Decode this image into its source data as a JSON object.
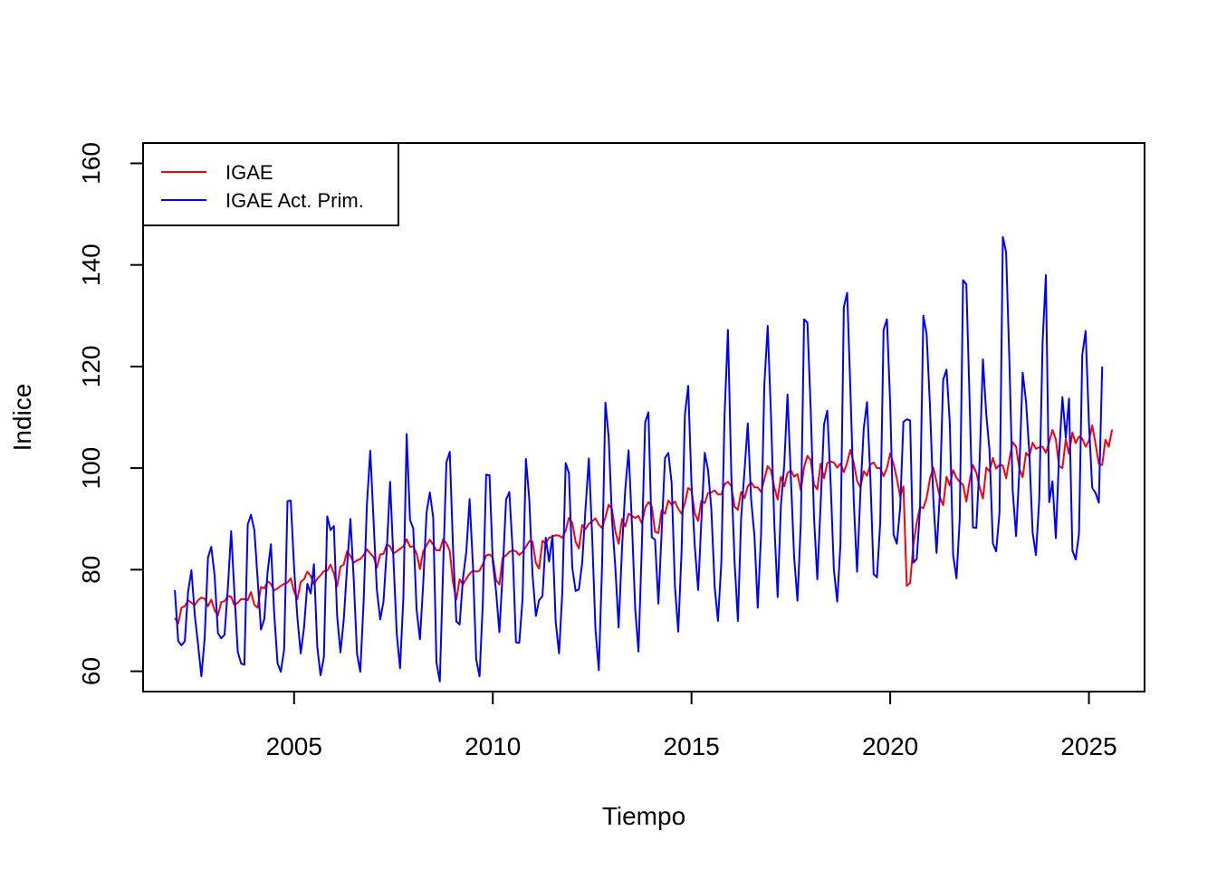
{
  "chart_data": {
    "type": "line",
    "title": "",
    "xlabel": "Tiempo",
    "ylabel": "Indice",
    "xlim": [
      2001.2,
      2026.4
    ],
    "ylim": [
      56,
      164
    ],
    "x_ticks": [
      2005,
      2010,
      2015,
      2020,
      2025
    ],
    "x_tick_labels": [
      "2005",
      "2010",
      "2015",
      "2020",
      "2025"
    ],
    "y_ticks": [
      60,
      80,
      100,
      120,
      140,
      160
    ],
    "y_tick_labels": [
      "60",
      "80",
      "100",
      "120",
      "140",
      "160"
    ],
    "grid": false,
    "legend_position": "top-left",
    "x_start": 2002.0,
    "x_step": 0.0833333,
    "series": [
      {
        "name": "IGAE",
        "color": "#ff0000",
        "values": [
          70.5,
          69.4,
          72.5,
          72.8,
          74.0,
          73.5,
          73.0,
          74.0,
          74.5,
          74.3,
          72.8,
          74.1,
          72.0,
          71.0,
          73.6,
          73.8,
          74.8,
          74.7,
          73.0,
          73.5,
          74.2,
          74.2,
          74.0,
          75.6,
          73.1,
          72.5,
          76.6,
          76.3,
          77.7,
          77.2,
          75.9,
          76.3,
          76.8,
          77.2,
          77.5,
          78.3,
          75.7,
          74.2,
          77.6,
          78.1,
          79.6,
          78.8,
          77.1,
          78.2,
          78.9,
          79.7,
          79.8,
          81.0,
          79.3,
          76.7,
          80.6,
          81.0,
          83.6,
          82.7,
          81.4,
          81.8,
          82.1,
          82.9,
          84.0,
          83.2,
          82.5,
          80.4,
          83.0,
          83.1,
          85.0,
          84.6,
          83.2,
          83.6,
          84.1,
          84.6,
          86.0,
          84.5,
          84.6,
          83.2,
          80.1,
          83.6,
          84.8,
          85.9,
          84.9,
          83.8,
          83.8,
          86.0,
          85.2,
          83.7,
          77.5,
          74.1,
          78.1,
          77.1,
          78.2,
          79.2,
          79.8,
          79.6,
          79.8,
          81.1,
          82.8,
          83.0,
          82.4,
          77.9,
          77.1,
          82.4,
          82.8,
          83.5,
          83.8,
          83.6,
          82.9,
          83.5,
          84.5,
          85.6,
          85.5,
          81.3,
          80.2,
          85.7,
          85.2,
          86.3,
          86.5,
          86.8,
          86.7,
          86.3,
          87.7,
          90.2,
          89.2,
          85.5,
          84.2,
          88.8,
          88.0,
          89.0,
          89.5,
          90.1,
          88.9,
          88.2,
          90.3,
          92.8,
          91.9,
          87.6,
          85.1,
          90.0,
          88.5,
          91.0,
          90.6,
          90.2,
          90.6,
          89.1,
          92.2,
          93.3,
          92.5,
          87.5,
          87.2,
          91.7,
          91.0,
          93.6,
          92.8,
          93.4,
          92.0,
          91.0,
          93.1,
          96.1,
          95.6,
          91.1,
          89.6,
          93.6,
          93.1,
          95.1,
          95.2,
          95.6,
          94.8,
          94.8,
          96.8,
          97.3,
          96.5,
          92.4,
          91.8,
          95.3,
          94.1,
          96.4,
          97.2,
          96.2,
          96.2,
          95.3,
          97.8,
          100.4,
          99.6,
          96.2,
          93.8,
          98.3,
          96.4,
          99.0,
          99.6,
          98.3,
          98.8,
          95.6,
          100.2,
          102.4,
          101.6,
          96.7,
          95.8,
          100.9,
          98.0,
          101.0,
          101.3,
          101.1,
          100.1,
          100.9,
          99.2,
          101.1,
          103.6,
          101.0,
          97.5,
          96.2,
          99.4,
          98.5,
          100.7,
          101.1,
          100.0,
          100.0,
          98.4,
          100.0,
          102.9,
          100.8,
          98.0,
          94.4,
          96.4,
          76.8,
          77.4,
          84.9,
          89.2,
          92.4,
          92.1,
          94.1,
          97.9,
          100.1,
          97.3,
          94.2,
          92.7,
          98.3,
          96.6,
          99.6,
          98.1,
          97.3,
          96.7,
          93.4,
          97.6,
          100.6,
          99.1,
          96.2,
          94.0,
          100.1,
          99.4,
          102.0,
          99.9,
          100.6,
          100.5,
          98.0,
          101.8,
          105.1,
          104.2,
          99.9,
          98.2,
          103.0,
          102.3,
          105.0,
          103.8,
          104.1,
          104.2,
          103.0,
          105.1,
          107.5,
          105.7,
          100.4,
          100.0,
          105.7,
          102.8,
          107.0,
          104.9,
          106.2,
          105.8,
          104.2,
          105.4,
          108.4,
          104.8,
          100.8,
          100.6,
          105.6,
          104.2,
          107.6
        ]
      },
      {
        "name": "IGAE Act. Prim.",
        "color": "#0000ff",
        "values": [
          76.0,
          66.0,
          65.1,
          65.9,
          75.6,
          79.9,
          71.1,
          65.3,
          59.0,
          66.4,
          82.4,
          84.5,
          78.9,
          67.5,
          66.5,
          67.2,
          76.3,
          87.6,
          75.4,
          63.8,
          61.5,
          61.3,
          88.9,
          90.8,
          87.8,
          78.2,
          68.2,
          70.3,
          79.5,
          85.0,
          71.4,
          61.6,
          59.9,
          64.3,
          93.5,
          93.6,
          80.4,
          70.6,
          63.5,
          68.5,
          77.2,
          75.3,
          81.1,
          64.8,
          59.2,
          62.8,
          90.5,
          87.8,
          88.6,
          70.9,
          63.7,
          70.1,
          80.5,
          90.0,
          78.3,
          63.4,
          59.9,
          73.8,
          92.8,
          103.4,
          89.4,
          76.0,
          70.2,
          73.7,
          84.1,
          97.3,
          82.1,
          67.3,
          60.6,
          74.6,
          106.7,
          89.8,
          88.1,
          72.1,
          66.3,
          77.3,
          91.3,
          95.2,
          90.3,
          61.8,
          58.0,
          80.4,
          101.1,
          103.2,
          84.3,
          69.8,
          69.2,
          78.3,
          83.6,
          93.9,
          80.8,
          62.3,
          59.0,
          73.4,
          98.7,
          98.6,
          81.6,
          75.6,
          67.7,
          79.6,
          93.8,
          95.3,
          83.7,
          65.7,
          65.6,
          74.3,
          101.8,
          93.9,
          79.0,
          70.9,
          74.0,
          74.8,
          86.3,
          81.6,
          86.7,
          69.7,
          63.5,
          75.6,
          101.0,
          99.0,
          80.4,
          75.8,
          76.1,
          81.5,
          92.0,
          101.9,
          86.8,
          68.3,
          60.2,
          80.8,
          112.9,
          106.1,
          89.8,
          80.6,
          68.6,
          84.1,
          95.8,
          103.5,
          89.4,
          72.3,
          63.9,
          84.6,
          109.0,
          111.0,
          86.4,
          85.9,
          73.3,
          87.5,
          102.0,
          103.0,
          97.1,
          76.7,
          67.8,
          83.6,
          110.5,
          116.2,
          96.6,
          84.6,
          76.0,
          89.8,
          103.0,
          99.6,
          91.8,
          76.5,
          69.9,
          81.3,
          110.6,
          127.2,
          98.9,
          81.7,
          69.9,
          90.2,
          99.5,
          108.8,
          93.9,
          86.6,
          72.5,
          87.0,
          116.4,
          128.0,
          110.6,
          89.1,
          74.6,
          92.6,
          100.7,
          114.5,
          98.1,
          82.5,
          73.9,
          89.2,
          129.3,
          128.6,
          111.6,
          90.2,
          78.1,
          93.1,
          108.6,
          111.3,
          97.2,
          80.0,
          73.7,
          85.2,
          131.7,
          134.5,
          115.1,
          93.3,
          79.6,
          95.2,
          107.8,
          113.0,
          98.1,
          79.1,
          78.5,
          89.3,
          127.2,
          129.3,
          112.6,
          86.9,
          85.1,
          92.2,
          109.1,
          109.6,
          109.4,
          81.4,
          82.1,
          91.8,
          130.0,
          126.4,
          112.3,
          94.0,
          83.3,
          95.2,
          117.4,
          119.4,
          108.9,
          82.9,
          78.3,
          90.0,
          137.0,
          136.2,
          112.5,
          88.3,
          88.2,
          101.5,
          121.4,
          110.5,
          103.5,
          85.2,
          83.6,
          91.2,
          145.5,
          142.5,
          120.7,
          95.5,
          86.6,
          99.5,
          118.8,
          113.1,
          103.1,
          87.3,
          82.9,
          93.8,
          124.8,
          138.0,
          93.3,
          97.4,
          86.2,
          102.6,
          114.0,
          106.0,
          113.7,
          83.8,
          82.0,
          87.1,
          122.3,
          127.0,
          108.8,
          96.1,
          95.1,
          93.2,
          120.0
        ]
      }
    ]
  }
}
